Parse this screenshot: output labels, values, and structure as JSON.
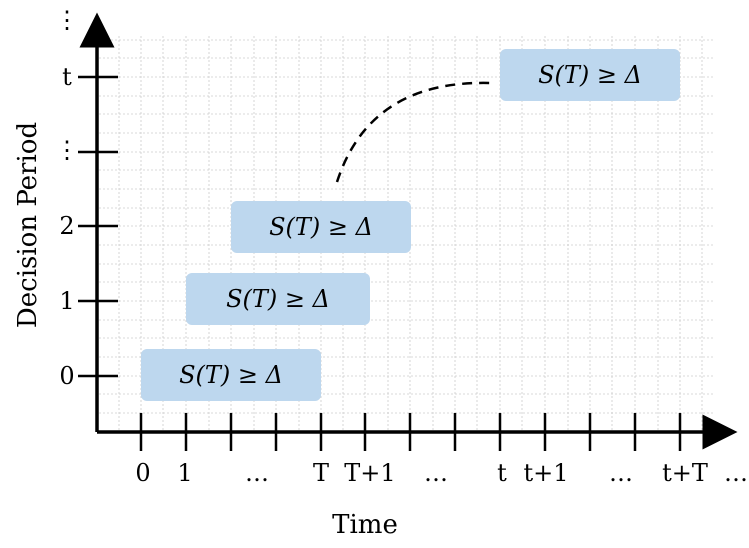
{
  "axes": {
    "x_title": "Time",
    "y_title": "Decision Period",
    "x_ticks": [
      "0",
      "1",
      "…",
      "T",
      "T+1",
      "…",
      "t",
      "t+1",
      "…",
      "t+T",
      "…"
    ],
    "y_ticks": [
      "0",
      "1",
      "2",
      "⋮",
      "t",
      "⋮"
    ]
  },
  "boxes": [
    {
      "label": "S(T) ≥ Δ",
      "period": "0"
    },
    {
      "label": "S(T) ≥ Δ",
      "period": "1"
    },
    {
      "label": "S(T) ≥ Δ",
      "period": "2"
    },
    {
      "label": "S(T) ≥ Δ",
      "period": "t"
    }
  ],
  "colors": {
    "box_fill": "#bdd7ee",
    "grid": "#cccccc",
    "axis": "#000000",
    "dashed_curve": "#000000"
  }
}
